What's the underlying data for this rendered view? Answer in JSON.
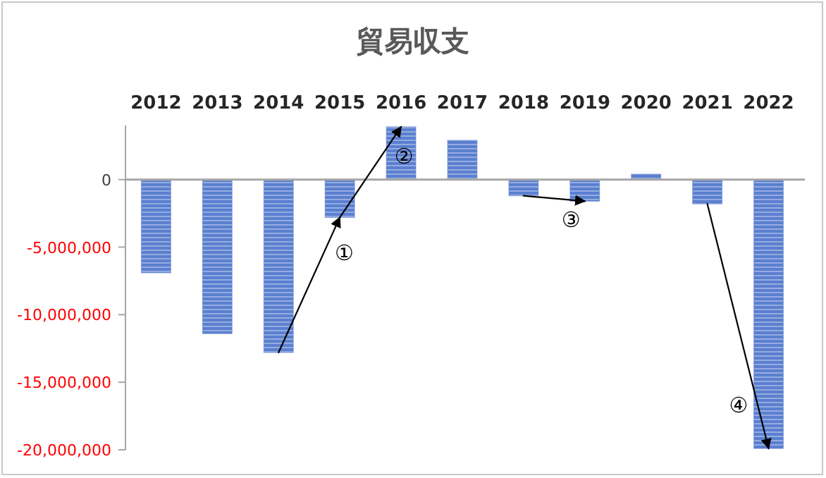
{
  "chart_data": {
    "type": "bar",
    "title": "貿易収支",
    "categories": [
      "2012",
      "2013",
      "2014",
      "2015",
      "2016",
      "2017",
      "2018",
      "2019",
      "2020",
      "2021",
      "2022"
    ],
    "values": [
      -6900000,
      -11400000,
      -12800000,
      -2800000,
      3900000,
      2900000,
      -1200000,
      -1600000,
      400000,
      -1800000,
      -19900000
    ],
    "color": "#5b7fd0",
    "ylim": [
      -20000000,
      4000000
    ],
    "yticks": [
      {
        "value": 0,
        "label": "0"
      },
      {
        "value": -5000000,
        "label": "-5,000,000"
      },
      {
        "value": -10000000,
        "label": "-10,000,000"
      },
      {
        "value": -15000000,
        "label": "-15,000,000"
      },
      {
        "value": -20000000,
        "label": "-20,000,000"
      }
    ],
    "annotations": [
      {
        "text": "①",
        "x": "2015",
        "y": -2800000
      },
      {
        "text": "②",
        "x": "2016",
        "y": 3900000
      },
      {
        "text": "③",
        "x": "2019",
        "y": -1600000
      },
      {
        "text": "④",
        "x": "2022",
        "y": -19900000
      }
    ]
  }
}
